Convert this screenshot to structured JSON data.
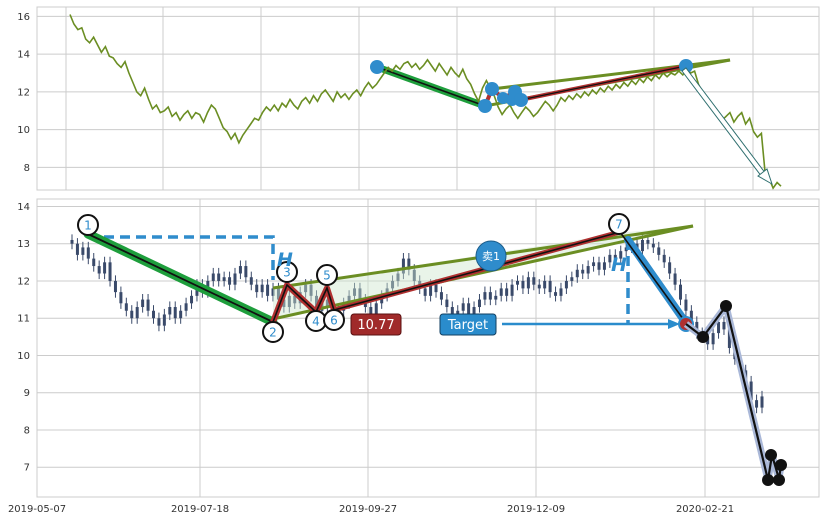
{
  "chart_data": [
    {
      "type": "line",
      "panel": "top",
      "ylim": [
        6.8,
        16.5
      ],
      "yticks": [
        "8",
        "10",
        "12",
        "14",
        "16"
      ],
      "grid": true,
      "colors": {
        "price": "#6b8e23",
        "pattern_green": "#1e9e3c",
        "pattern_red": "#b03030",
        "marker": "#2f8ccc",
        "trend": "#6b8e23"
      },
      "series": [
        {
          "values": [
            16.1,
            15.6,
            15.3,
            15.4,
            14.8,
            14.6,
            14.9,
            14.5,
            14.1,
            14.4,
            13.9,
            13.8,
            13.5,
            13.3,
            13.6,
            13.0,
            12.5,
            12.0,
            11.8,
            12.2,
            11.6,
            11.1,
            11.3,
            10.9,
            11.0,
            11.2,
            10.7,
            10.9,
            10.5,
            10.8,
            11.0,
            10.6,
            10.9,
            10.8,
            10.4,
            10.9,
            11.3,
            11.1,
            10.6,
            10.1,
            9.9,
            9.5,
            9.8,
            9.3,
            9.7,
            10.0,
            10.3,
            10.6,
            10.5,
            10.9,
            11.2,
            11.0,
            11.3,
            11.0,
            11.4,
            11.2,
            11.6,
            11.3,
            11.1,
            11.5,
            11.7,
            11.4,
            11.8,
            11.5,
            11.9,
            12.1,
            11.8,
            11.5,
            12.0,
            11.7,
            11.9,
            11.6,
            11.9,
            12.1,
            11.8,
            12.2,
            12.5,
            12.2,
            12.4,
            12.7,
            13.0,
            13.3,
            13.1,
            13.4,
            13.2,
            13.5,
            13.6,
            13.3,
            13.5,
            13.2,
            13.4,
            13.7,
            13.4,
            13.1,
            13.5,
            13.2,
            12.9,
            13.3,
            13.0,
            12.8,
            13.2,
            12.7,
            12.4,
            11.9,
            11.5,
            12.2,
            12.6,
            12.2,
            11.8,
            11.2,
            10.8,
            11.1,
            11.3,
            10.9,
            10.6,
            10.9,
            11.2,
            11.0,
            10.7,
            10.9,
            11.2,
            11.5,
            11.3,
            11.0,
            11.3,
            11.7,
            11.5,
            11.8,
            11.6,
            11.9,
            11.7,
            12.0,
            11.8,
            12.1,
            11.9,
            12.2,
            12.0,
            12.3,
            12.1,
            12.4,
            12.2,
            12.5,
            12.3,
            12.6,
            12.4,
            12.7,
            12.5,
            12.8,
            12.6,
            12.9,
            12.7,
            13.0,
            12.8,
            13.0,
            12.9,
            13.1,
            12.9,
            13.2,
            13.0,
            13.1,
            12.4,
            12.0,
            11.6,
            11.2,
            10.9,
            10.8,
            10.5,
            10.7,
            10.9,
            10.4,
            10.7,
            10.9,
            10.3,
            10.6,
            9.9,
            9.6,
            9.8,
            7.6,
            7.4,
            6.9,
            7.2,
            7.0
          ]
        }
      ],
      "tick_labels_x": []
    },
    {
      "type": "candlestick",
      "panel": "bottom",
      "x_tick_labels": [
        "2019-05-07",
        "2019-07-18",
        "2019-09-27",
        "2019-12-09",
        "2020-02-21"
      ],
      "yticks": [
        "7",
        "8",
        "9",
        "10",
        "11",
        "12",
        "13",
        "14"
      ],
      "ylim": [
        6.2,
        14.2
      ],
      "grid": true,
      "closes": [
        13.0,
        12.7,
        12.9,
        12.6,
        12.4,
        12.2,
        12.5,
        12.0,
        11.7,
        11.4,
        11.2,
        11.0,
        11.3,
        11.5,
        11.2,
        11.0,
        10.8,
        11.1,
        11.3,
        11.0,
        11.2,
        11.4,
        11.6,
        11.9,
        11.7,
        12.0,
        12.2,
        12.0,
        12.1,
        11.9,
        12.2,
        12.4,
        12.1,
        11.9,
        11.7,
        11.9,
        11.6,
        11.8,
        11.5,
        11.3,
        11.6,
        11.4,
        11.7,
        11.9,
        11.6,
        11.2,
        11.5,
        11.3,
        11.0,
        11.2,
        11.4,
        11.6,
        11.8,
        11.5,
        11.3,
        11.1,
        11.4,
        11.6,
        11.8,
        12.0,
        12.2,
        12.6,
        12.3,
        12.0,
        11.8,
        11.6,
        11.9,
        11.7,
        11.5,
        11.3,
        11.0,
        11.2,
        11.4,
        11.1,
        11.3,
        11.5,
        11.7,
        11.5,
        11.6,
        11.8,
        11.6,
        11.9,
        12.0,
        11.8,
        12.1,
        11.9,
        11.8,
        12.0,
        11.7,
        11.6,
        11.8,
        12.0,
        12.1,
        12.3,
        12.2,
        12.4,
        12.5,
        12.3,
        12.5,
        12.7,
        12.6,
        12.8,
        12.9,
        13.0,
        12.8,
        13.1,
        13.0,
        12.9,
        12.7,
        12.5,
        12.2,
        11.9,
        11.5,
        11.2,
        10.9,
        10.6,
        10.5,
        10.3,
        10.6,
        10.9,
        10.7,
        10.2,
        9.9,
        9.6,
        9.3,
        8.8,
        8.6,
        8.9
      ],
      "annotations": [
        "1",
        "2",
        "3",
        "4",
        "5",
        "6",
        "7"
      ],
      "price_label": "10.77",
      "sell_label": "卖1",
      "target_label": "Target",
      "h_labels": [
        "H",
        "H"
      ],
      "colors": {
        "price": "#6b8e23",
        "pattern_green": "#1e9e3c",
        "pattern_red": "#b03030",
        "marker": "#2f8ccc",
        "black": "#111111",
        "candle": "#3a4a6a",
        "price_box": "#a02a2a",
        "target_box": "#2a8ccc"
      }
    }
  ]
}
